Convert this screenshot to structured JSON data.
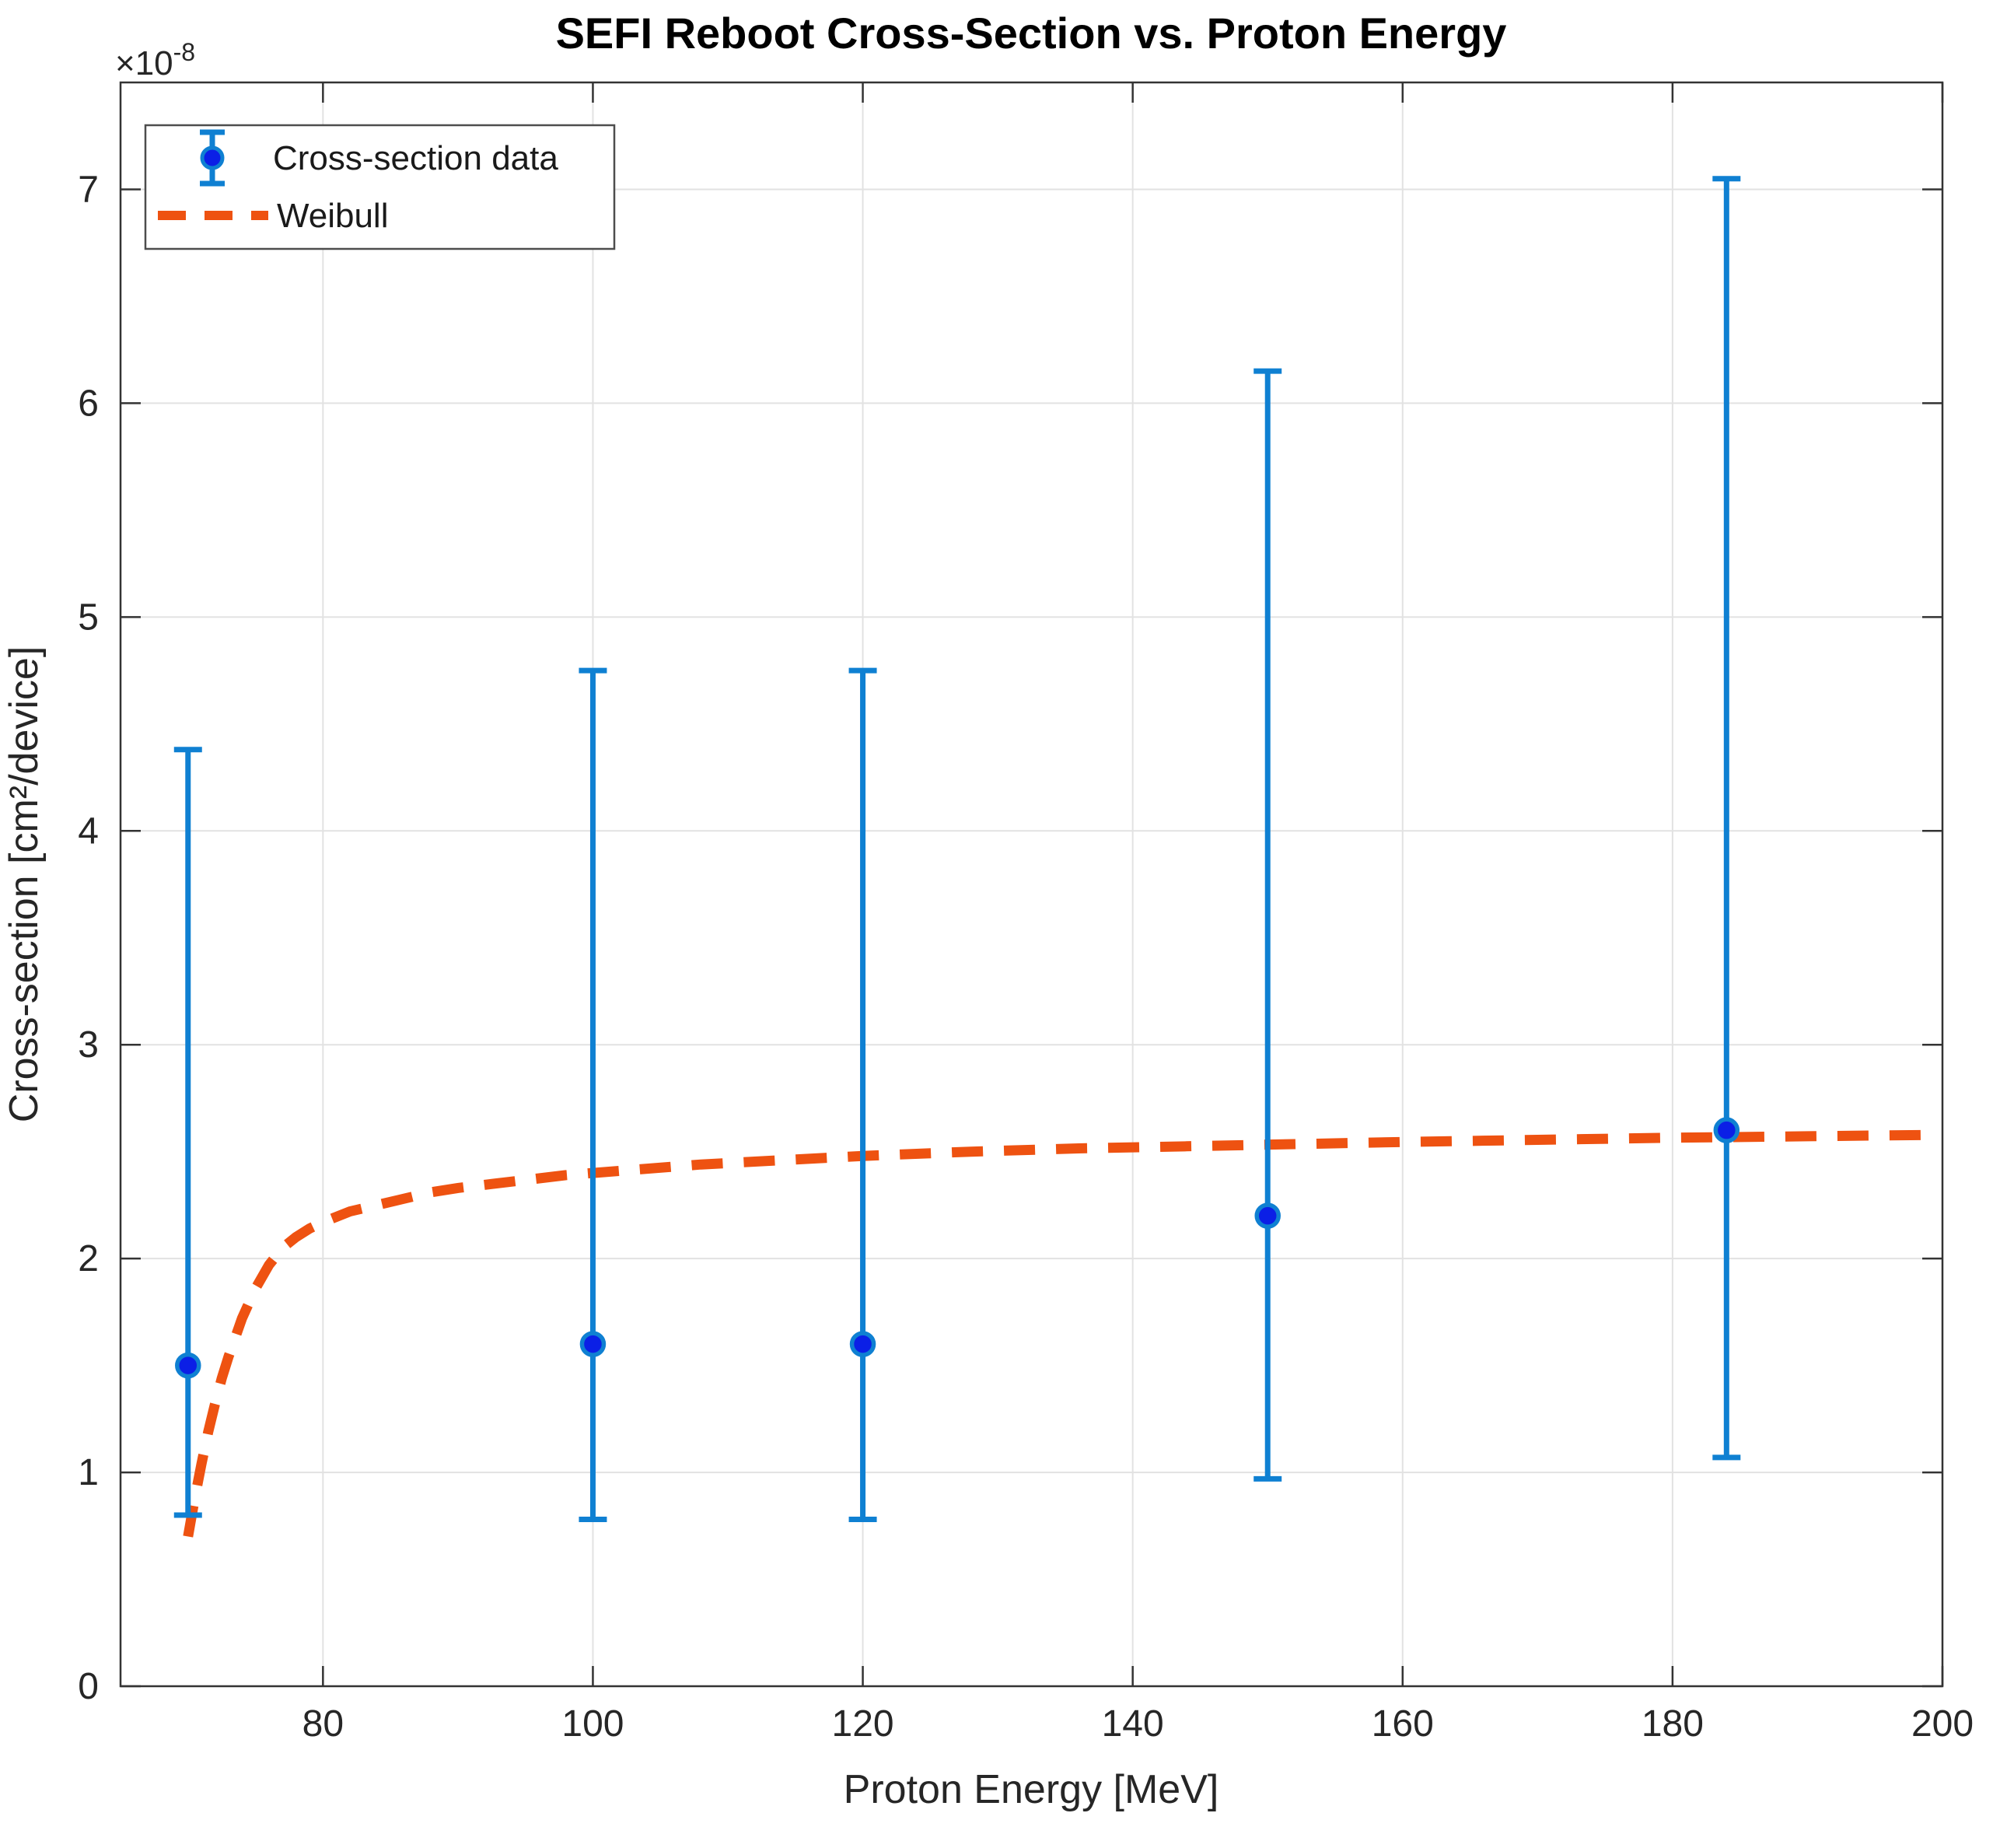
{
  "chart_data": {
    "type": "scatter",
    "title": "SEFI Reboot Cross-Section vs. Proton Energy",
    "xlabel": "Proton Energy [MeV]",
    "ylabel": "Cross-section [cm²/device]",
    "y_exponent_base": "×10",
    "y_exponent_power": "-8",
    "xlim": [
      65,
      200
    ],
    "ylim_x1e8": [
      0,
      7.5
    ],
    "xticks": [
      80,
      100,
      120,
      140,
      160,
      180,
      200
    ],
    "yticks_x1e8": [
      0,
      1,
      2,
      3,
      4,
      5,
      6,
      7
    ],
    "grid": true,
    "legend": {
      "position": "top-left",
      "entries": [
        {
          "label": "Cross-section data",
          "type": "errorbar-marker"
        },
        {
          "label": "Weibull",
          "type": "dashed-line"
        }
      ]
    },
    "series": [
      {
        "name": "Cross-section data",
        "type": "scatter-errorbar",
        "x_mev": [
          70,
          100,
          120,
          150,
          184
        ],
        "y_x1e8": [
          1.5,
          1.6,
          1.6,
          2.2,
          2.6
        ],
        "err_low_x1e8": [
          0.8,
          0.78,
          0.78,
          0.97,
          1.07
        ],
        "err_high_x1e8": [
          4.38,
          4.75,
          4.75,
          6.15,
          7.05
        ]
      },
      {
        "name": "Weibull",
        "type": "line",
        "style": "dashed",
        "points_mev_x1e8": [
          [
            70,
            0.7
          ],
          [
            70.5,
            0.88
          ],
          [
            71,
            1.04
          ],
          [
            71.5,
            1.19
          ],
          [
            72,
            1.32
          ],
          [
            72.5,
            1.44
          ],
          [
            73,
            1.54
          ],
          [
            74,
            1.72
          ],
          [
            75,
            1.86
          ],
          [
            76,
            1.97
          ],
          [
            77,
            2.05
          ],
          [
            78,
            2.1
          ],
          [
            79,
            2.14
          ],
          [
            80,
            2.17
          ],
          [
            82,
            2.22
          ],
          [
            84,
            2.25
          ],
          [
            86,
            2.28
          ],
          [
            88,
            2.31
          ],
          [
            90,
            2.33
          ],
          [
            94,
            2.36
          ],
          [
            98,
            2.39
          ],
          [
            102,
            2.41
          ],
          [
            108,
            2.44
          ],
          [
            114,
            2.46
          ],
          [
            120,
            2.48
          ],
          [
            128,
            2.5
          ],
          [
            136,
            2.515
          ],
          [
            144,
            2.525
          ],
          [
            152,
            2.535
          ],
          [
            160,
            2.545
          ],
          [
            170,
            2.555
          ],
          [
            180,
            2.565
          ],
          [
            190,
            2.572
          ],
          [
            199,
            2.578
          ]
        ]
      }
    ],
    "colors": {
      "errorbar": "#0f80d2",
      "marker_face": "#0b1fe6",
      "weibull": "#ee5211",
      "grid": "#e2e2e2",
      "axis": "#333333",
      "text": "#262626"
    }
  }
}
